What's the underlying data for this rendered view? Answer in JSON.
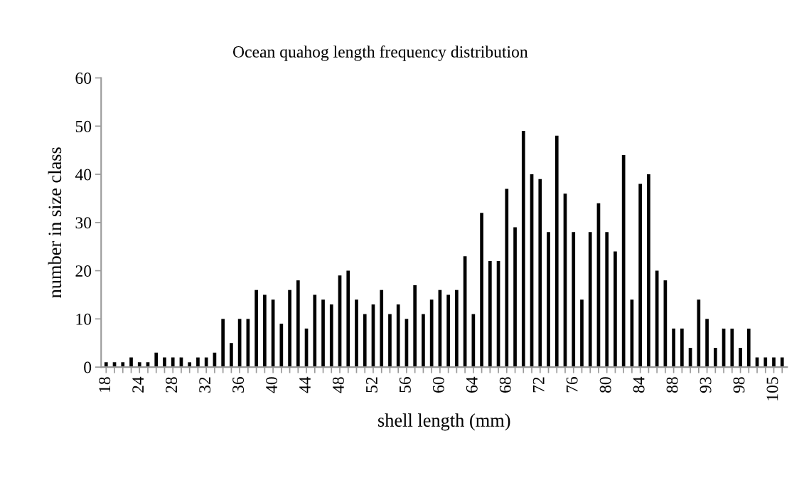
{
  "chart_data": {
    "type": "bar",
    "title": "Ocean quahog length frequency distribution",
    "xlabel": "shell length (mm)",
    "ylabel": "number in size class",
    "categories": [
      "18",
      null,
      null,
      null,
      "24",
      null,
      null,
      null,
      "28",
      null,
      null,
      null,
      "32",
      null,
      null,
      null,
      "36",
      null,
      null,
      null,
      "40",
      null,
      null,
      null,
      "44",
      null,
      null,
      null,
      "48",
      null,
      null,
      null,
      "52",
      null,
      null,
      null,
      "56",
      null,
      null,
      null,
      "60",
      null,
      null,
      null,
      "64",
      null,
      null,
      null,
      "68",
      null,
      null,
      null,
      "72",
      null,
      null,
      null,
      "76",
      null,
      null,
      null,
      "80",
      null,
      null,
      null,
      "84",
      null,
      null,
      null,
      "88",
      null,
      null,
      null,
      "93",
      null,
      null,
      null,
      "98",
      null,
      null,
      null,
      "105",
      null
    ],
    "values": [
      1,
      1,
      1,
      2,
      1,
      1,
      3,
      2,
      2,
      2,
      1,
      2,
      2,
      3,
      10,
      5,
      10,
      10,
      16,
      15,
      14,
      9,
      16,
      18,
      8,
      15,
      14,
      13,
      19,
      20,
      14,
      11,
      13,
      16,
      11,
      13,
      10,
      17,
      11,
      14,
      16,
      15,
      16,
      23,
      11,
      32,
      22,
      22,
      37,
      29,
      49,
      40,
      39,
      28,
      48,
      36,
      28,
      14,
      28,
      34,
      28,
      24,
      44,
      14,
      38,
      40,
      20,
      18,
      8,
      8,
      4,
      14,
      10,
      4,
      8,
      8,
      4,
      8,
      2,
      2,
      2,
      2
    ],
    "color": "#000000",
    "ylim": [
      0,
      60
    ],
    "yticks": [
      0,
      10,
      20,
      30,
      40,
      50,
      60
    ],
    "grid": false
  }
}
